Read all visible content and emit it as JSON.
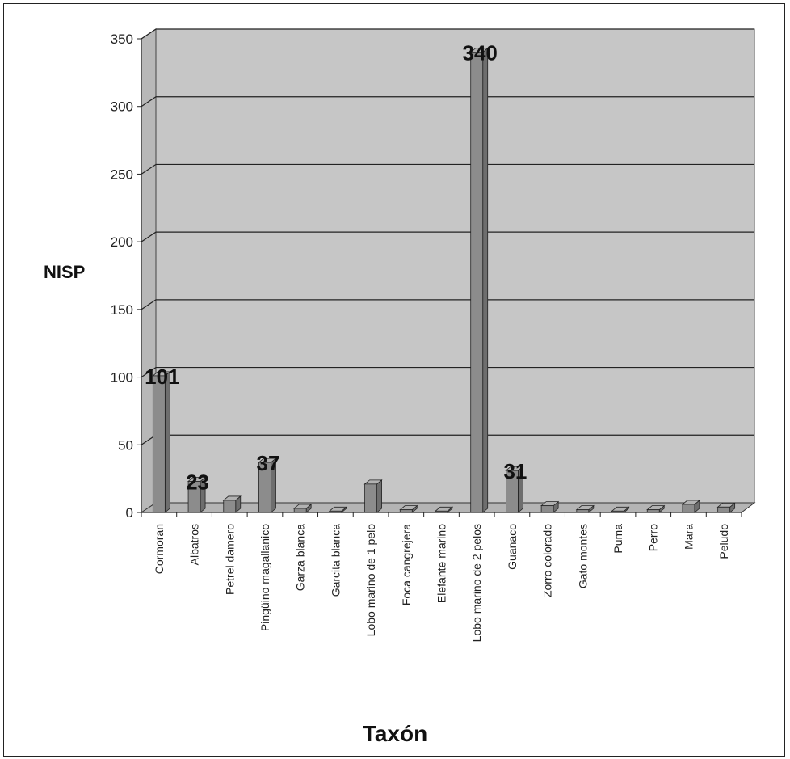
{
  "chart_data": {
    "type": "bar",
    "title": "",
    "xlabel": "Taxón",
    "ylabel": "NISP",
    "ylim": [
      0,
      350
    ],
    "yticks": [
      0,
      50,
      100,
      150,
      200,
      250,
      300,
      350
    ],
    "grid": true,
    "legend": "none",
    "categories": [
      "Cormoran",
      "Albatros",
      "Petrel damero",
      "Pingüino magallanico",
      "Garza blanca",
      "Garcita blanca",
      "Lobo marino de 1 pelo",
      "Foca cangrejera",
      "Elefante marino",
      "Lobo marino de 2 pelos",
      "Guanaco",
      "Zorro colorado",
      "Gato montes",
      "Puma",
      "Perro",
      "Mara",
      "Peludo"
    ],
    "values": [
      101,
      23,
      9,
      37,
      3,
      1,
      21,
      2,
      1,
      340,
      31,
      5,
      2,
      1,
      2,
      6,
      4
    ],
    "data_labels": [
      "101",
      "23",
      "",
      "37",
      "",
      "",
      "",
      "",
      "",
      "340",
      "31",
      "",
      "",
      "",
      "",
      "",
      ""
    ],
    "colors": {
      "plot_back": "#c6c6c6",
      "floor": "#b4b4b4",
      "bar_front": "#8c8c8c",
      "bar_side": "#6e6e6e",
      "bar_top": "#b2b2b2",
      "gridline": "#222222"
    }
  }
}
